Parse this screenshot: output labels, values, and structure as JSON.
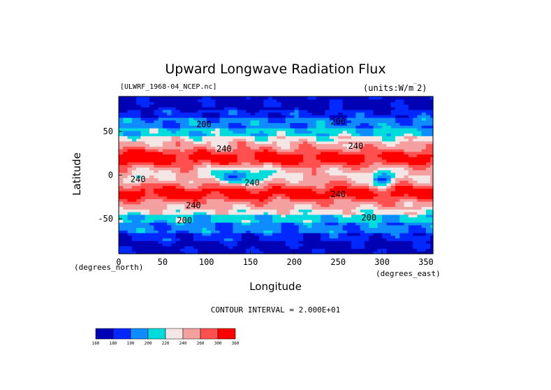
{
  "chart_data": {
    "type": "heatmap",
    "title": "Upward Longwave Radiation Flux",
    "file_label": "[ULWRF_1968-04_NCEP.nc]",
    "units_label": "(units:W/m^2)",
    "xlabel": "Longitude",
    "ylabel": "Latitude",
    "x_units_label": "(degrees_east)",
    "y_units_label": "(degrees_north)",
    "xlim": [
      0,
      358
    ],
    "ylim": [
      -90,
      90
    ],
    "x_ticks": [
      0,
      50,
      100,
      150,
      200,
      250,
      300,
      350
    ],
    "y_ticks": [
      -50,
      0,
      50
    ],
    "y_tick_labels": [
      "-50",
      "0",
      "50"
    ],
    "contour_interval_label": "CONTOUR INTERVAL = 2.000E+01",
    "contour_labels": [
      {
        "text": "200",
        "lon": 97,
        "lat": 55
      },
      {
        "text": "200",
        "lon": 250,
        "lat": 58
      },
      {
        "text": "240",
        "lon": 120,
        "lat": 27
      },
      {
        "text": "240",
        "lon": 270,
        "lat": 30
      },
      {
        "text": "240",
        "lon": 22,
        "lat": -8
      },
      {
        "text": "240",
        "lon": 152,
        "lat": -12
      },
      {
        "text": "240",
        "lon": 85,
        "lat": -38
      },
      {
        "text": "240",
        "lon": 250,
        "lat": -25
      },
      {
        "text": "200",
        "lon": 75,
        "lat": -55
      },
      {
        "text": "200",
        "lon": 285,
        "lat": -52
      }
    ],
    "colorbar": {
      "levels": [
        "160",
        "180",
        "190",
        "200",
        "220",
        "240",
        "260",
        "300",
        "360"
      ],
      "colors": [
        "#0000b4",
        "#0028ff",
        "#0f8cff",
        "#00dcdc",
        "#f5e6e6",
        "#f5a0a0",
        "#ff5050",
        "#ff0000"
      ]
    },
    "grid": false
  }
}
